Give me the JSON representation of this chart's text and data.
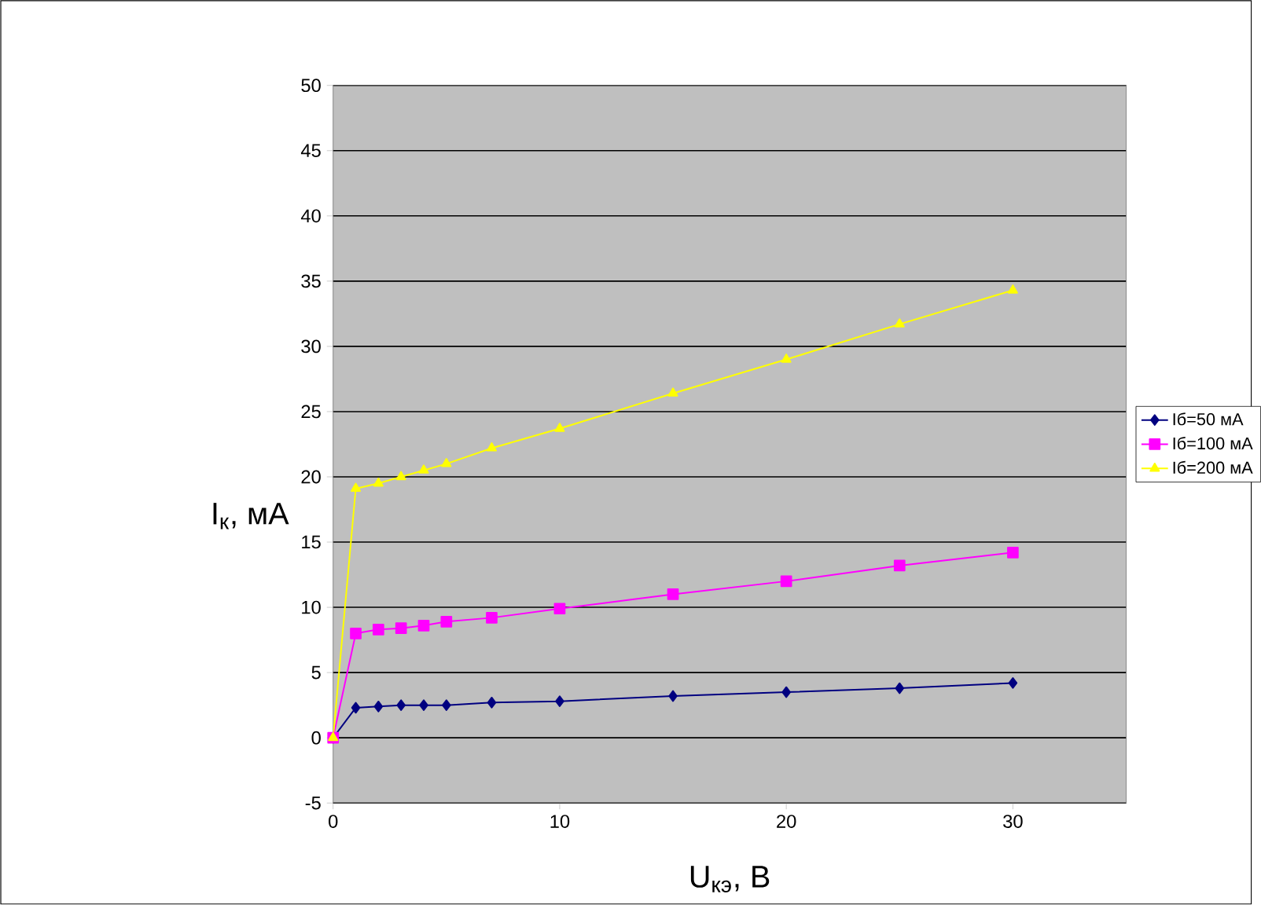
{
  "chart_data": {
    "type": "line",
    "xlabel": "U$_{кэ}$, В",
    "ylabel": "I$_{к}$, мА",
    "x": [
      0,
      1,
      2,
      3,
      4,
      5,
      7,
      10,
      15,
      20,
      25,
      30
    ],
    "series": [
      {
        "name": "Iб=50 мА",
        "color": "#000080",
        "marker": "diamond",
        "values": [
          0,
          2.3,
          2.4,
          2.5,
          2.5,
          2.5,
          2.7,
          2.8,
          3.2,
          3.5,
          3.8,
          4.2
        ]
      },
      {
        "name": "Iб=100 мА",
        "color": "#ff00ff",
        "marker": "square",
        "values": [
          0,
          8.0,
          8.3,
          8.4,
          8.6,
          8.9,
          9.2,
          9.9,
          11.0,
          12.0,
          13.2,
          14.2
        ]
      },
      {
        "name": "Iб=200 мА",
        "color": "#ffff00",
        "marker": "triangle",
        "values": [
          0,
          19.1,
          19.5,
          20.0,
          20.5,
          21.0,
          22.2,
          23.7,
          26.4,
          29.0,
          31.7,
          34.3
        ]
      }
    ],
    "xlim": [
      0,
      35
    ],
    "xticks": [
      0,
      10,
      20,
      30
    ],
    "ylim": [
      -5,
      50
    ],
    "yticks": [
      -5,
      0,
      5,
      10,
      15,
      20,
      25,
      30,
      35,
      40,
      45,
      50
    ],
    "grid": "y",
    "legend": "right",
    "line_style": "solid"
  }
}
